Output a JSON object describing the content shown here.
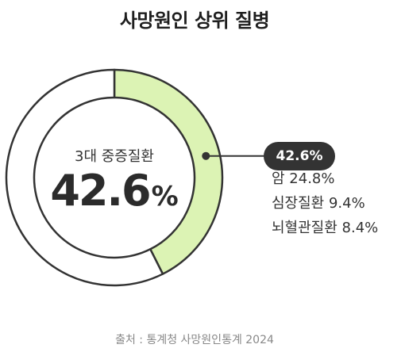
{
  "chart_data": {
    "type": "pie",
    "title": "사망원인 상위 질병",
    "center_label": "3대 중증질환",
    "center_value": "42.6",
    "center_unit": "%",
    "slices": [
      {
        "label": "3대 중증질환",
        "value": 42.6,
        "color": "#dcf3b4"
      },
      {
        "label": "",
        "value": 57.4,
        "color": "#ffffff"
      }
    ],
    "callout": "42.6%",
    "breakdown": [
      {
        "name": "암",
        "value": "24.8%"
      },
      {
        "name": "심장질환",
        "value": "9.4%"
      },
      {
        "name": "뇌혈관질환",
        "value": "8.4%"
      }
    ],
    "source": "출처 : 통계청 사망원인통계 2024"
  },
  "colors": {
    "highlight": "#dcf3b4",
    "outline": "#333333",
    "badge": "#333333"
  }
}
